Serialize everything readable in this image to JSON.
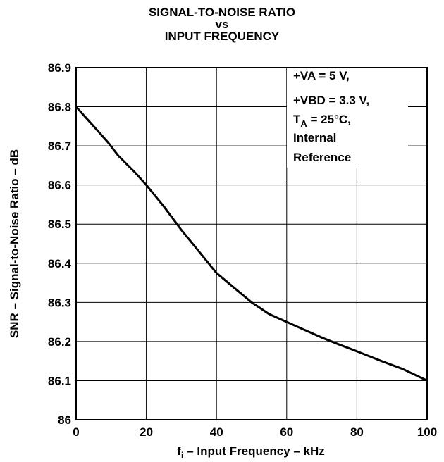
{
  "chart_data": {
    "type": "line",
    "title_lines": [
      "SIGNAL-TO-NOISE RATIO",
      "vs",
      "INPUT FREQUENCY"
    ],
    "xlabel": {
      "main": "f",
      "sub": "i",
      "rest": " – Input Frequency – kHz"
    },
    "ylabel": "SNR – Signal-to-Noise Ratio – dB",
    "xlim": [
      0,
      100
    ],
    "ylim": [
      86.0,
      86.9
    ],
    "xticks": [
      0,
      20,
      40,
      60,
      80,
      100
    ],
    "xtick_labels": [
      "0",
      "20",
      "40",
      "60",
      "80",
      "100"
    ],
    "yticks": [
      86.0,
      86.1,
      86.2,
      86.3,
      86.4,
      86.5,
      86.6,
      86.7,
      86.8,
      86.9
    ],
    "ytick_labels": [
      "86",
      "86.1",
      "86.2",
      "86.3",
      "86.4",
      "86.5",
      "86.6",
      "86.7",
      "86.8",
      "86.9"
    ],
    "grid": true,
    "annotation": {
      "line1": "+VA = 5 V,",
      "line2": "+VBD = 3.3 V,",
      "line3_main": "T",
      "line3_sub": "A",
      "line3_rest": " = 25°C,",
      "line4": "Internal",
      "line5": "Reference"
    },
    "series": [
      {
        "x": [
          0,
          5,
          9,
          12,
          17,
          20,
          25,
          30,
          35,
          40,
          44,
          50,
          55,
          60,
          65,
          70,
          75,
          80,
          87,
          93,
          100
        ],
        "y": [
          86.8,
          86.75,
          86.71,
          86.675,
          86.63,
          86.6,
          86.545,
          86.485,
          86.43,
          86.375,
          86.345,
          86.3,
          86.27,
          86.25,
          86.23,
          86.21,
          86.192,
          86.175,
          86.15,
          86.13,
          86.1
        ]
      }
    ]
  }
}
